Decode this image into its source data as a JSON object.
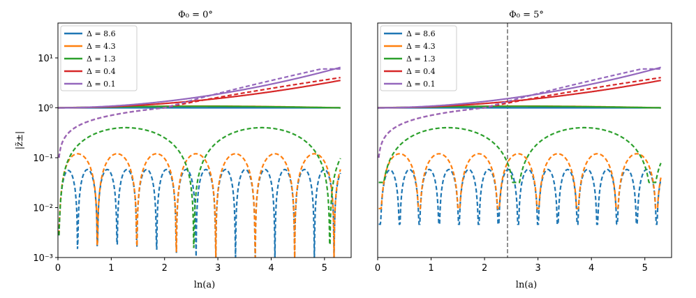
{
  "chart_data": [
    {
      "type": "line",
      "title": "Φ₀ = 0°",
      "xlabel": "ln(a)",
      "ylabel": "|z̃±|",
      "yscale": "log",
      "xlim": [
        0,
        5.5
      ],
      "ylim": [
        0.001,
        50
      ],
      "xticks": [
        0,
        1,
        2,
        3,
        4,
        5
      ],
      "xtick_labels": [
        "0",
        "1",
        "2",
        "3",
        "4",
        "5"
      ],
      "yticks": [
        0.001,
        0.01,
        0.1,
        1,
        10
      ],
      "ytick_labels": [
        "10⁻³",
        "10⁻²",
        "10⁻¹",
        "10⁰",
        "10¹"
      ],
      "legend_position": "top-left",
      "marker_line_x": null,
      "series": [
        {
          "name": "Δ = 8.6",
          "delta": 8.6,
          "color": "#1f77b4"
        },
        {
          "name": "Δ = 4.3",
          "delta": 4.3,
          "color": "#ff7f0e"
        },
        {
          "name": "Δ = 1.3",
          "delta": 1.3,
          "color": "#2ca02c"
        },
        {
          "name": "Δ = 0.4",
          "delta": 0.4,
          "color": "#d62728"
        },
        {
          "name": "Δ = 0.1",
          "delta": 0.1,
          "color": "#9467bd"
        }
      ]
    },
    {
      "type": "line",
      "title": "Φ₀ = 5°",
      "xlabel": "ln(a)",
      "ylabel": "",
      "yscale": "log",
      "xlim": [
        0,
        5.5
      ],
      "ylim": [
        0.001,
        50
      ],
      "xticks": [
        0,
        1,
        2,
        3,
        4,
        5
      ],
      "xtick_labels": [
        "0",
        "1",
        "2",
        "3",
        "4",
        "5"
      ],
      "yticks": [],
      "ytick_labels": [],
      "legend_position": "top-left",
      "marker_line_x": 2.43,
      "series": [
        {
          "name": "Δ = 8.6",
          "delta": 8.6,
          "color": "#1f77b4"
        },
        {
          "name": "Δ = 4.3",
          "delta": 4.3,
          "color": "#ff7f0e"
        },
        {
          "name": "Δ = 1.3",
          "delta": 1.3,
          "color": "#2ca02c"
        },
        {
          "name": "Δ = 0.4",
          "delta": 0.4,
          "color": "#d62728"
        },
        {
          "name": "Δ = 0.1",
          "delta": 0.1,
          "color": "#9467bd"
        }
      ]
    }
  ]
}
